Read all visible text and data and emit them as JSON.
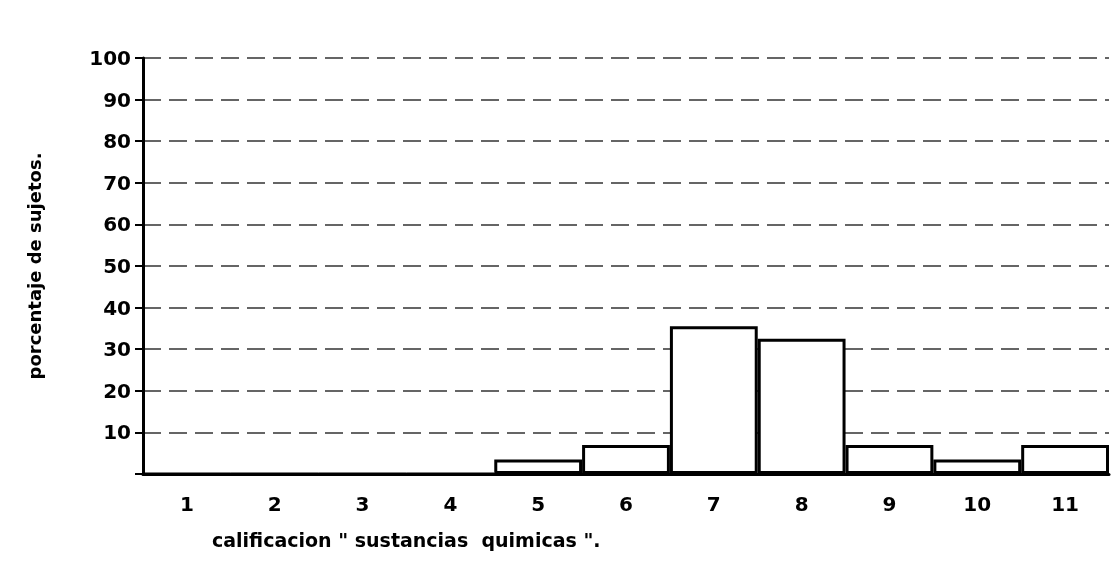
{
  "chart_data": {
    "type": "bar",
    "categories": [
      "1",
      "2",
      "3",
      "4",
      "5",
      "6",
      "7",
      "8",
      "9",
      "10",
      "11"
    ],
    "values": [
      0,
      0,
      0,
      0,
      3.5,
      7,
      35.5,
      32.5,
      7,
      3.5,
      7
    ],
    "color": "#ffffff",
    "xlabel": "calificacion \" sustancias  quimicas \".",
    "ylabel": "porcentaje de sujetos.",
    "ylim": [
      0,
      100
    ],
    "yticks": [
      {
        "value": 0,
        "label": null
      },
      10,
      20,
      30,
      40,
      50,
      60,
      70,
      80,
      90,
      100
    ],
    "grid": "y"
  }
}
